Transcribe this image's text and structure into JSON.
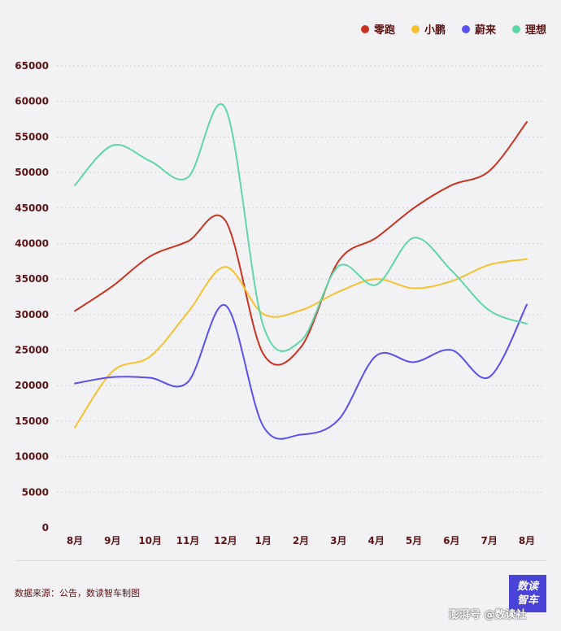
{
  "chart_data": {
    "type": "line",
    "categories": [
      "8月",
      "9月",
      "10月",
      "11月",
      "12月",
      "1月",
      "2月",
      "3月",
      "4月",
      "5月",
      "6月",
      "7月",
      "8月"
    ],
    "series": [
      {
        "name": "零跑",
        "color": "#c8331f",
        "values": [
          30500,
          34000,
          38200,
          40300,
          43200,
          24500,
          25400,
          37500,
          40800,
          45000,
          48200,
          50200,
          57100
        ]
      },
      {
        "name": "小鹏",
        "color": "#f5c12e",
        "values": [
          14100,
          22000,
          24100,
          30300,
          36700,
          30100,
          30600,
          33200,
          35000,
          33700,
          34700,
          37000,
          37800
        ]
      },
      {
        "name": "蔚来",
        "color": "#5a4ff0",
        "values": [
          20300,
          21200,
          21100,
          20500,
          31300,
          14300,
          13100,
          15200,
          24200,
          23300,
          25000,
          21200,
          31400
        ]
      },
      {
        "name": "理想",
        "color": "#5fd6a8",
        "values": [
          48200,
          53800,
          51600,
          49300,
          59000,
          28500,
          26300,
          36800,
          34200,
          40800,
          36200,
          30600,
          28700
        ]
      }
    ],
    "ylim": [
      0,
      65000
    ],
    "yticks": [
      0,
      5000,
      10000,
      15000,
      20000,
      25000,
      30000,
      35000,
      40000,
      45000,
      50000,
      55000,
      60000,
      65000
    ],
    "grid": "horizontal dashed",
    "legend_position": "top-right"
  },
  "source_text": "数据来源：公告，数读智车制图",
  "logo_text": "数读\n智车",
  "watermark_text": "澎湃号 @数读社"
}
